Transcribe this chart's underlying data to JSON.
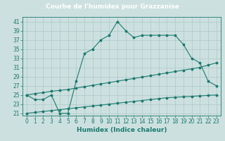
{
  "title": "Courbe de l'humidex pour Grazzanise",
  "xlabel": "Humidex (Indice chaleur)",
  "x": [
    0,
    1,
    2,
    3,
    4,
    5,
    6,
    7,
    8,
    9,
    10,
    11,
    12,
    13,
    14,
    15,
    16,
    17,
    18,
    19,
    20,
    21,
    22,
    23
  ],
  "line1": [
    25,
    24,
    24,
    25,
    21,
    21,
    28,
    34,
    35,
    37,
    38,
    41,
    39,
    37.5,
    38,
    38,
    38,
    38,
    38,
    36,
    33,
    32,
    28,
    27
  ],
  "line2": [
    25,
    25.3,
    25.5,
    25.8,
    26.0,
    26.2,
    26.5,
    26.8,
    27.1,
    27.4,
    27.7,
    28.0,
    28.3,
    28.6,
    28.9,
    29.2,
    29.5,
    29.8,
    30.1,
    30.4,
    30.7,
    31.0,
    31.5,
    32
  ],
  "line3": [
    21,
    21.2,
    21.4,
    21.6,
    21.8,
    22.0,
    22.2,
    22.4,
    22.6,
    22.8,
    23.0,
    23.2,
    23.4,
    23.6,
    23.8,
    24.0,
    24.2,
    24.4,
    24.5,
    24.6,
    24.7,
    24.8,
    24.9,
    25
  ],
  "line_color": "#1a7a6e",
  "bg_color": "#cde0e0",
  "grid_color": "#adc8c8",
  "tick_color": "#1a7a6e",
  "title_bg": "#5a9a8a",
  "title_fg": "#ffffff",
  "ylim": [
    20.5,
    42
  ],
  "yticks": [
    21,
    23,
    25,
    27,
    29,
    31,
    33,
    35,
    37,
    39,
    41
  ],
  "xlim": [
    -0.5,
    23.5
  ],
  "axis_fontsize": 5.5,
  "label_fontsize": 6.5,
  "title_fontsize": 6.5
}
